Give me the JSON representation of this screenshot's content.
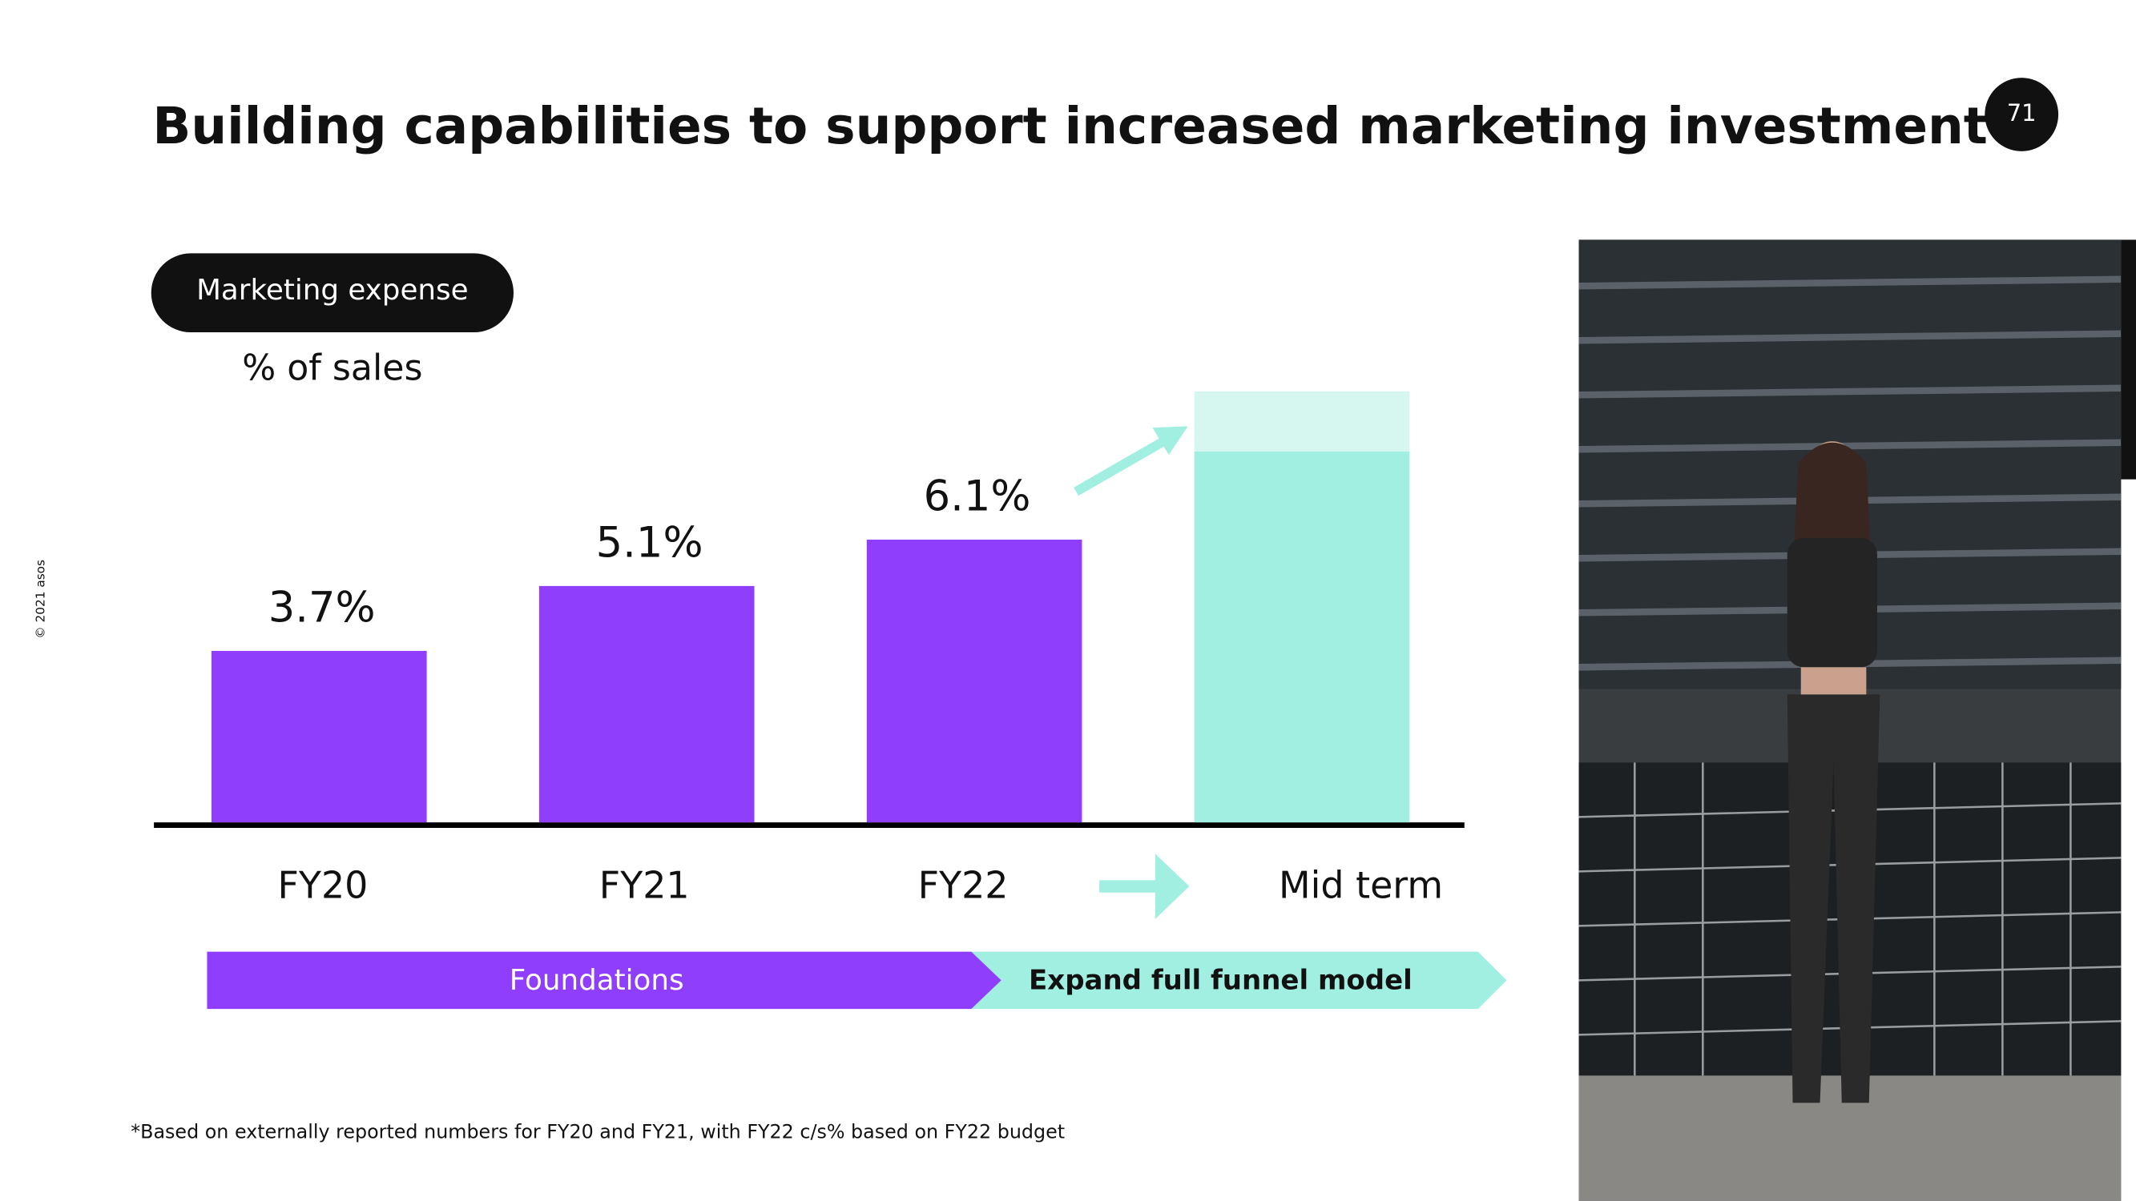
{
  "slide_title": "Building capabilities to support increased marketing investment",
  "page_number": "71",
  "copyright": "© 2021 asos",
  "footnote": "*Based on externally reported numbers for FY20 and FY21, with FY22 c/s% based on FY22 budget",
  "chart_data": {
    "type": "bar",
    "title": "Marketing expense",
    "subtitle": "% of sales",
    "categories": [
      "FY20",
      "FY21",
      "FY22",
      "Mid term"
    ],
    "values": [
      3.7,
      5.1,
      6.1,
      8.0
    ],
    "value_labels": [
      "3.7%",
      "5.1%",
      "6.1%",
      null
    ],
    "colors": [
      "#8f3ffc",
      "#8f3ffc",
      "#8f3ffc",
      "#a0efe0"
    ],
    "range_top": 9.3,
    "range_color": "#d5f7f0",
    "phases": [
      {
        "label": "Foundations",
        "color": "#8f3ffc"
      },
      {
        "label": "Expand full funnel model",
        "color": "#a0efe0"
      }
    ]
  }
}
